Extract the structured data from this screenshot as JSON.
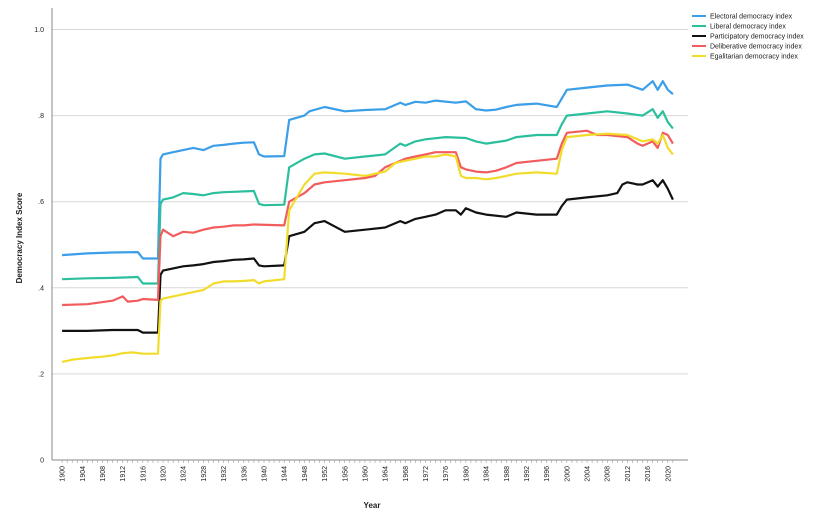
{
  "colors": {
    "background": "#ffffff",
    "grid": "#d9d9d9",
    "axis": "#888888"
  },
  "chart_data": {
    "type": "line",
    "title": "",
    "xlabel": "Year",
    "ylabel": "Democracy Index Score",
    "ylim": [
      0,
      1.05
    ],
    "xlim": [
      1898,
      2024
    ],
    "grid": true,
    "legend_position": "top-right",
    "y_ticks": [
      0,
      0.2,
      0.4,
      0.6,
      0.8,
      1.0
    ],
    "y_tick_labels": [
      "0",
      ".2",
      ".4",
      ".6",
      ".8",
      "1.0"
    ],
    "x_tick_labels": [
      "1900",
      "1904",
      "1908",
      "1912",
      "1916",
      "1920",
      "1924",
      "1928",
      "1932",
      "1936",
      "1940",
      "1944",
      "1948",
      "1952",
      "1956",
      "1960",
      "1964",
      "1968",
      "1972",
      "1976",
      "1980",
      "1984",
      "1988",
      "1992",
      "1996",
      "2000",
      "2004",
      "2008",
      "2012",
      "2016",
      "2020"
    ],
    "series": [
      {
        "name": "Electoral democracy index",
        "color": "#3b9ee8",
        "points": [
          [
            1900,
            0.476
          ],
          [
            1905,
            0.48
          ],
          [
            1910,
            0.482
          ],
          [
            1915,
            0.483
          ],
          [
            1916,
            0.468
          ],
          [
            1919,
            0.468
          ],
          [
            1919.5,
            0.7
          ],
          [
            1920,
            0.71
          ],
          [
            1922,
            0.715
          ],
          [
            1924,
            0.72
          ],
          [
            1926,
            0.725
          ],
          [
            1928,
            0.72
          ],
          [
            1930,
            0.73
          ],
          [
            1932,
            0.732
          ],
          [
            1934,
            0.735
          ],
          [
            1936,
            0.737
          ],
          [
            1938,
            0.738
          ],
          [
            1939,
            0.71
          ],
          [
            1940,
            0.705
          ],
          [
            1944,
            0.706
          ],
          [
            1945,
            0.79
          ],
          [
            1948,
            0.8
          ],
          [
            1949,
            0.81
          ],
          [
            1952,
            0.82
          ],
          [
            1956,
            0.81
          ],
          [
            1960,
            0.813
          ],
          [
            1964,
            0.815
          ],
          [
            1967,
            0.83
          ],
          [
            1968,
            0.825
          ],
          [
            1970,
            0.832
          ],
          [
            1972,
            0.83
          ],
          [
            1974,
            0.835
          ],
          [
            1978,
            0.83
          ],
          [
            1980,
            0.833
          ],
          [
            1982,
            0.815
          ],
          [
            1984,
            0.812
          ],
          [
            1986,
            0.814
          ],
          [
            1988,
            0.82
          ],
          [
            1990,
            0.825
          ],
          [
            1994,
            0.828
          ],
          [
            1998,
            0.82
          ],
          [
            1999,
            0.84
          ],
          [
            2000,
            0.86
          ],
          [
            2004,
            0.865
          ],
          [
            2008,
            0.87
          ],
          [
            2012,
            0.872
          ],
          [
            2015,
            0.86
          ],
          [
            2017,
            0.88
          ],
          [
            2018,
            0.86
          ],
          [
            2019,
            0.88
          ],
          [
            2020,
            0.86
          ],
          [
            2021,
            0.85
          ]
        ]
      },
      {
        "name": "Liberal democracy index",
        "color": "#2bbf9e",
        "points": [
          [
            1900,
            0.42
          ],
          [
            1905,
            0.422
          ],
          [
            1910,
            0.423
          ],
          [
            1915,
            0.425
          ],
          [
            1916,
            0.41
          ],
          [
            1919,
            0.41
          ],
          [
            1919.5,
            0.595
          ],
          [
            1920,
            0.605
          ],
          [
            1922,
            0.61
          ],
          [
            1924,
            0.62
          ],
          [
            1926,
            0.618
          ],
          [
            1928,
            0.615
          ],
          [
            1930,
            0.62
          ],
          [
            1932,
            0.622
          ],
          [
            1934,
            0.623
          ],
          [
            1936,
            0.624
          ],
          [
            1938,
            0.625
          ],
          [
            1939,
            0.595
          ],
          [
            1940,
            0.592
          ],
          [
            1944,
            0.593
          ],
          [
            1945,
            0.68
          ],
          [
            1948,
            0.7
          ],
          [
            1950,
            0.71
          ],
          [
            1952,
            0.712
          ],
          [
            1956,
            0.7
          ],
          [
            1960,
            0.705
          ],
          [
            1964,
            0.71
          ],
          [
            1967,
            0.735
          ],
          [
            1968,
            0.73
          ],
          [
            1970,
            0.74
          ],
          [
            1972,
            0.745
          ],
          [
            1976,
            0.75
          ],
          [
            1980,
            0.748
          ],
          [
            1982,
            0.74
          ],
          [
            1984,
            0.735
          ],
          [
            1988,
            0.742
          ],
          [
            1990,
            0.75
          ],
          [
            1994,
            0.755
          ],
          [
            1998,
            0.755
          ],
          [
            1999,
            0.78
          ],
          [
            2000,
            0.8
          ],
          [
            2004,
            0.805
          ],
          [
            2008,
            0.81
          ],
          [
            2012,
            0.805
          ],
          [
            2015,
            0.8
          ],
          [
            2017,
            0.815
          ],
          [
            2018,
            0.795
          ],
          [
            2019,
            0.81
          ],
          [
            2020,
            0.785
          ],
          [
            2021,
            0.77
          ]
        ]
      },
      {
        "name": "Participatory democracy index",
        "color": "#111111",
        "points": [
          [
            1900,
            0.3
          ],
          [
            1905,
            0.3
          ],
          [
            1910,
            0.302
          ],
          [
            1915,
            0.302
          ],
          [
            1916,
            0.296
          ],
          [
            1919,
            0.296
          ],
          [
            1919.5,
            0.43
          ],
          [
            1920,
            0.44
          ],
          [
            1922,
            0.445
          ],
          [
            1924,
            0.45
          ],
          [
            1926,
            0.452
          ],
          [
            1928,
            0.455
          ],
          [
            1930,
            0.46
          ],
          [
            1932,
            0.462
          ],
          [
            1934,
            0.465
          ],
          [
            1936,
            0.466
          ],
          [
            1938,
            0.468
          ],
          [
            1939,
            0.452
          ],
          [
            1940,
            0.45
          ],
          [
            1944,
            0.452
          ],
          [
            1945,
            0.52
          ],
          [
            1948,
            0.53
          ],
          [
            1950,
            0.55
          ],
          [
            1952,
            0.555
          ],
          [
            1956,
            0.53
          ],
          [
            1960,
            0.535
          ],
          [
            1964,
            0.54
          ],
          [
            1967,
            0.555
          ],
          [
            1968,
            0.55
          ],
          [
            1970,
            0.56
          ],
          [
            1972,
            0.565
          ],
          [
            1974,
            0.57
          ],
          [
            1976,
            0.58
          ],
          [
            1978,
            0.58
          ],
          [
            1979,
            0.57
          ],
          [
            1980,
            0.585
          ],
          [
            1982,
            0.575
          ],
          [
            1984,
            0.57
          ],
          [
            1988,
            0.565
          ],
          [
            1990,
            0.575
          ],
          [
            1994,
            0.57
          ],
          [
            1998,
            0.57
          ],
          [
            1999,
            0.59
          ],
          [
            2000,
            0.605
          ],
          [
            2004,
            0.61
          ],
          [
            2008,
            0.615
          ],
          [
            2010,
            0.62
          ],
          [
            2011,
            0.64
          ],
          [
            2012,
            0.645
          ],
          [
            2014,
            0.64
          ],
          [
            2015,
            0.64
          ],
          [
            2017,
            0.65
          ],
          [
            2018,
            0.635
          ],
          [
            2019,
            0.65
          ],
          [
            2020,
            0.63
          ],
          [
            2021,
            0.605
          ]
        ]
      },
      {
        "name": "Deliberative democracy index",
        "color": "#f25c5c",
        "points": [
          [
            1900,
            0.36
          ],
          [
            1905,
            0.362
          ],
          [
            1910,
            0.37
          ],
          [
            1912,
            0.38
          ],
          [
            1913,
            0.368
          ],
          [
            1915,
            0.37
          ],
          [
            1916,
            0.374
          ],
          [
            1919,
            0.372
          ],
          [
            1919.5,
            0.52
          ],
          [
            1920,
            0.535
          ],
          [
            1922,
            0.52
          ],
          [
            1924,
            0.53
          ],
          [
            1926,
            0.528
          ],
          [
            1928,
            0.535
          ],
          [
            1930,
            0.54
          ],
          [
            1932,
            0.542
          ],
          [
            1934,
            0.545
          ],
          [
            1936,
            0.545
          ],
          [
            1938,
            0.547
          ],
          [
            1944,
            0.545
          ],
          [
            1945,
            0.6
          ],
          [
            1948,
            0.62
          ],
          [
            1950,
            0.64
          ],
          [
            1952,
            0.645
          ],
          [
            1956,
            0.65
          ],
          [
            1960,
            0.655
          ],
          [
            1962,
            0.66
          ],
          [
            1964,
            0.68
          ],
          [
            1966,
            0.69
          ],
          [
            1968,
            0.7
          ],
          [
            1970,
            0.705
          ],
          [
            1972,
            0.71
          ],
          [
            1974,
            0.715
          ],
          [
            1978,
            0.715
          ],
          [
            1979,
            0.68
          ],
          [
            1980,
            0.675
          ],
          [
            1982,
            0.67
          ],
          [
            1984,
            0.668
          ],
          [
            1986,
            0.672
          ],
          [
            1988,
            0.68
          ],
          [
            1990,
            0.69
          ],
          [
            1994,
            0.695
          ],
          [
            1998,
            0.7
          ],
          [
            1999,
            0.735
          ],
          [
            2000,
            0.76
          ],
          [
            2004,
            0.765
          ],
          [
            2006,
            0.755
          ],
          [
            2008,
            0.755
          ],
          [
            2012,
            0.75
          ],
          [
            2014,
            0.735
          ],
          [
            2015,
            0.73
          ],
          [
            2017,
            0.74
          ],
          [
            2018,
            0.725
          ],
          [
            2019,
            0.76
          ],
          [
            2020,
            0.755
          ],
          [
            2021,
            0.735
          ]
        ]
      },
      {
        "name": "Egalitarian democracy index",
        "color": "#f2dc2b",
        "points": [
          [
            1900,
            0.228
          ],
          [
            1902,
            0.233
          ],
          [
            1905,
            0.237
          ],
          [
            1908,
            0.24
          ],
          [
            1910,
            0.243
          ],
          [
            1912,
            0.248
          ],
          [
            1914,
            0.25
          ],
          [
            1916,
            0.247
          ],
          [
            1919,
            0.247
          ],
          [
            1919.5,
            0.37
          ],
          [
            1920,
            0.375
          ],
          [
            1922,
            0.38
          ],
          [
            1924,
            0.385
          ],
          [
            1926,
            0.39
          ],
          [
            1928,
            0.395
          ],
          [
            1930,
            0.41
          ],
          [
            1932,
            0.415
          ],
          [
            1934,
            0.415
          ],
          [
            1936,
            0.416
          ],
          [
            1938,
            0.418
          ],
          [
            1939,
            0.41
          ],
          [
            1940,
            0.415
          ],
          [
            1944,
            0.42
          ],
          [
            1945,
            0.58
          ],
          [
            1948,
            0.64
          ],
          [
            1950,
            0.665
          ],
          [
            1952,
            0.668
          ],
          [
            1956,
            0.665
          ],
          [
            1960,
            0.66
          ],
          [
            1962,
            0.665
          ],
          [
            1964,
            0.67
          ],
          [
            1966,
            0.69
          ],
          [
            1968,
            0.695
          ],
          [
            1970,
            0.7
          ],
          [
            1972,
            0.705
          ],
          [
            1974,
            0.705
          ],
          [
            1976,
            0.71
          ],
          [
            1978,
            0.705
          ],
          [
            1979,
            0.66
          ],
          [
            1980,
            0.655
          ],
          [
            1982,
            0.655
          ],
          [
            1984,
            0.652
          ],
          [
            1986,
            0.655
          ],
          [
            1988,
            0.66
          ],
          [
            1990,
            0.665
          ],
          [
            1994,
            0.668
          ],
          [
            1998,
            0.665
          ],
          [
            1999,
            0.72
          ],
          [
            2000,
            0.75
          ],
          [
            2004,
            0.755
          ],
          [
            2008,
            0.758
          ],
          [
            2012,
            0.755
          ],
          [
            2014,
            0.745
          ],
          [
            2015,
            0.74
          ],
          [
            2017,
            0.745
          ],
          [
            2018,
            0.735
          ],
          [
            2019,
            0.755
          ],
          [
            2020,
            0.725
          ],
          [
            2021,
            0.71
          ]
        ]
      }
    ]
  }
}
